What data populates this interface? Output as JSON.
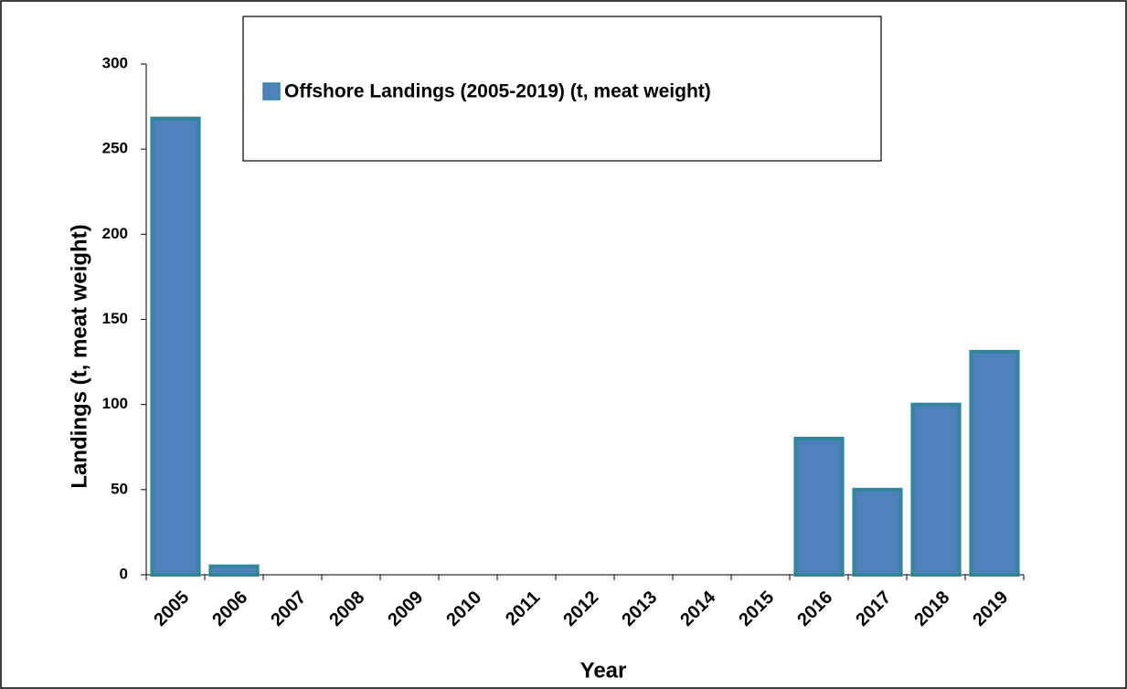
{
  "chart_data": {
    "type": "bar",
    "categories": [
      "2005",
      "2006",
      "2007",
      "2008",
      "2009",
      "2010",
      "2011",
      "2012",
      "2013",
      "2014",
      "2015",
      "2016",
      "2017",
      "2018",
      "2019"
    ],
    "series": [
      {
        "name": "Offshore Landings (2005-2019) (t, meat weight)",
        "color": "#4f81bd",
        "values": [
          268,
          5,
          0,
          0,
          0,
          0,
          0,
          0,
          0,
          0,
          0,
          80,
          50,
          100,
          131
        ]
      }
    ],
    "edgecolor": "#31859c",
    "xlabel": "Year",
    "ylabel": "Landings (t, meat weight)",
    "ylim": [
      0,
      300
    ],
    "yticks": [
      0,
      50,
      100,
      150,
      200,
      250,
      300
    ]
  }
}
